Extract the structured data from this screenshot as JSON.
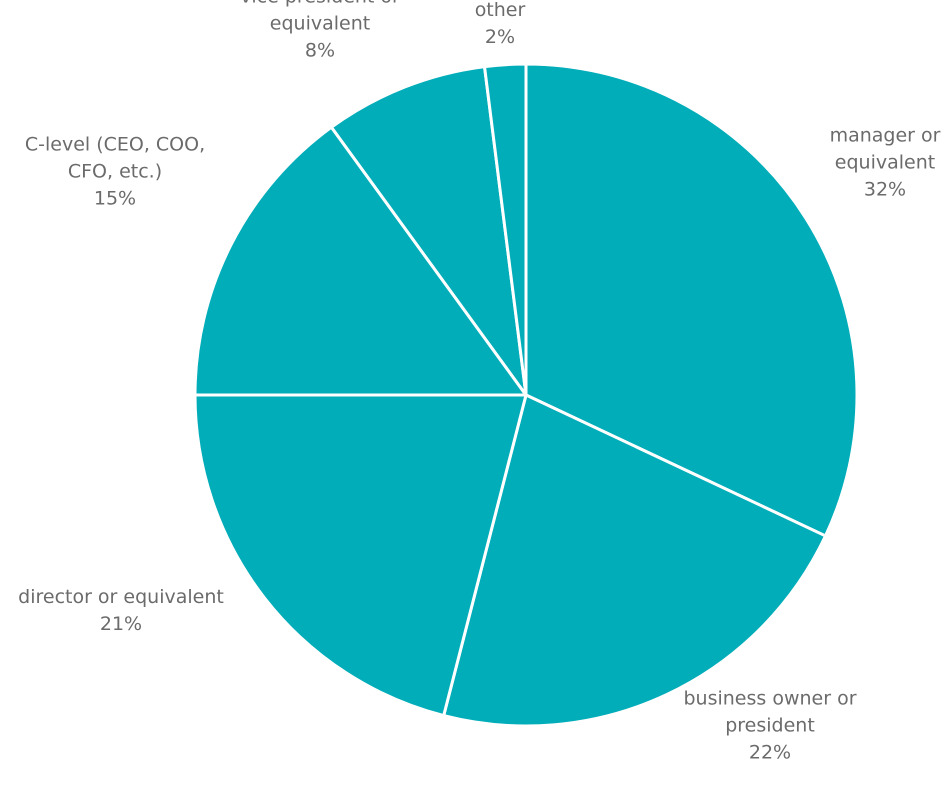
{
  "chart_data": {
    "type": "pie",
    "slice_color": "#00adb9",
    "separator_color": "#ffffff",
    "label_color": "#6b6b6b",
    "slices": [
      {
        "lines": [
          "manager or",
          "equivalent"
        ],
        "value": 32,
        "value_label": "32%"
      },
      {
        "lines": [
          "business owner or",
          "president"
        ],
        "value": 22,
        "value_label": "22%"
      },
      {
        "lines": [
          "director or equivalent"
        ],
        "value": 21,
        "value_label": "21%"
      },
      {
        "lines": [
          "C-level (CEO, COO,",
          "CFO, etc.)"
        ],
        "value": 15,
        "value_label": "15%"
      },
      {
        "lines": [
          "vice president or",
          "equivalent"
        ],
        "value": 8,
        "value_label": "8%"
      },
      {
        "lines": [
          "other"
        ],
        "value": 2,
        "value_label": "2%"
      }
    ]
  }
}
